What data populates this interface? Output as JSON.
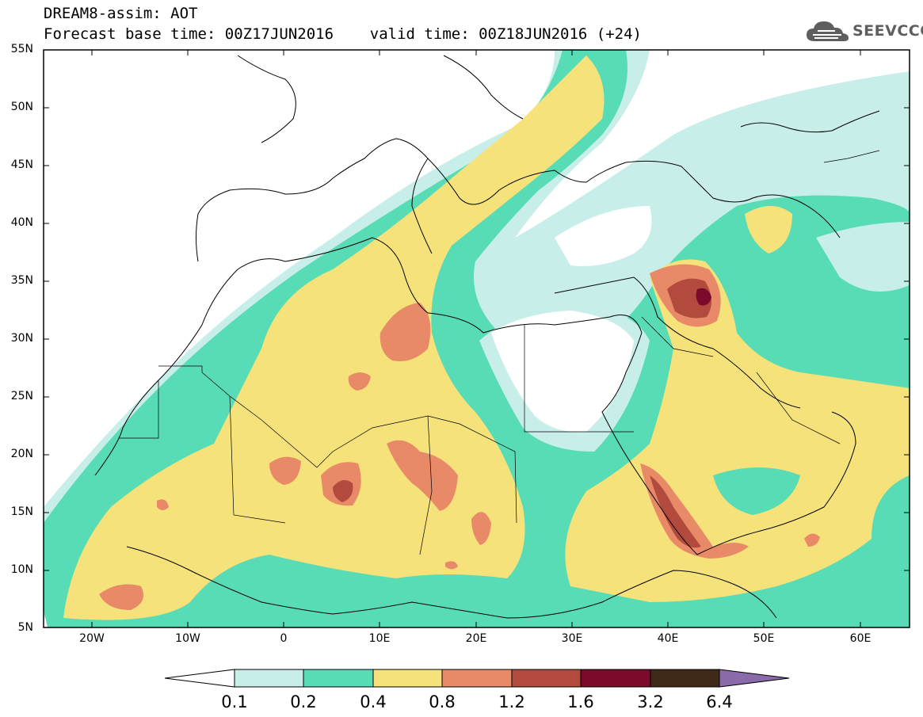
{
  "title": {
    "line1": "DREAM8-assim: AOT",
    "line2": "Forecast base time: 00Z17JUN2016    valid time: 00Z18JUN2016 (+24)"
  },
  "logo": {
    "text": "SEEVCCC",
    "icon": "cloud-icon"
  },
  "axes": {
    "lat_labels": [
      "55N",
      "50N",
      "45N",
      "40N",
      "35N",
      "30N",
      "25N",
      "20N",
      "15N",
      "10N",
      "5N"
    ],
    "lon_labels": [
      "20W",
      "10W",
      "0",
      "10E",
      "20E",
      "30E",
      "40E",
      "50E",
      "60E"
    ],
    "lon_range": [
      -25,
      65
    ],
    "lat_range": [
      5,
      55
    ]
  },
  "colorbar": {
    "labels": [
      "0.1",
      "0.2",
      "0.4",
      "0.8",
      "1.2",
      "1.6",
      "3.2",
      "6.4"
    ],
    "colors": [
      "#ffffff",
      "#c8eee9",
      "#58dcb6",
      "#f6e27a",
      "#e88a67",
      "#b24b3e",
      "#7a0b2a",
      "#3f2a1a",
      "#8a6aa8"
    ]
  },
  "palette": {
    "level_0_1": "#c8eee9",
    "level_0_2": "#58dcb6",
    "level_0_4": "#f6e27a",
    "level_0_8": "#e88a67",
    "level_1_2": "#b24b3e",
    "level_1_6": "#7a0b2a"
  }
}
